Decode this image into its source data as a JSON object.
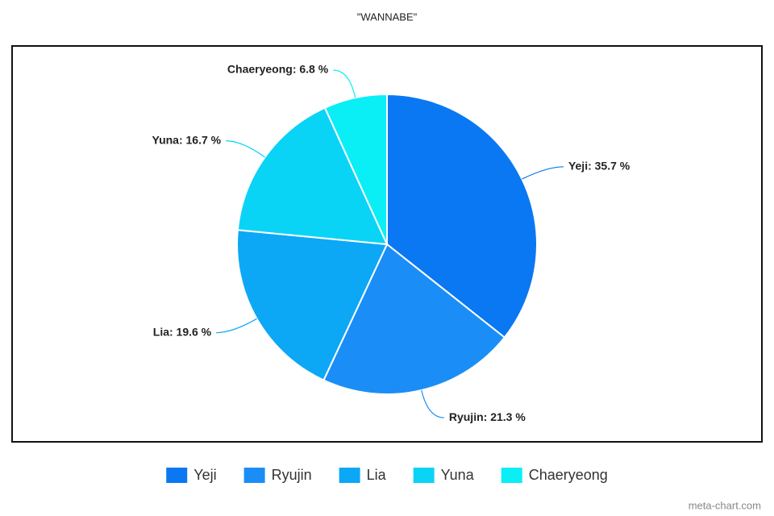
{
  "chart_data": {
    "type": "pie",
    "title": "\"WANNABE\"",
    "categories": [
      "Yeji",
      "Ryujin",
      "Lia",
      "Yuna",
      "Chaeryeong"
    ],
    "values": [
      35.7,
      21.3,
      19.6,
      16.7,
      6.8
    ],
    "value_labels": [
      "Yeji: 35.7 %",
      "Ryujin: 21.3 %",
      "Lia: 19.6 %",
      "Yuna: 16.7 %",
      "Chaeryeong: 6.8 %"
    ],
    "colors": [
      "#0a78f2",
      "#1a8ef6",
      "#0ca8f6",
      "#0ad4f6",
      "#0aeef6"
    ],
    "legend": "bottom",
    "watermark": "meta-chart.com"
  }
}
